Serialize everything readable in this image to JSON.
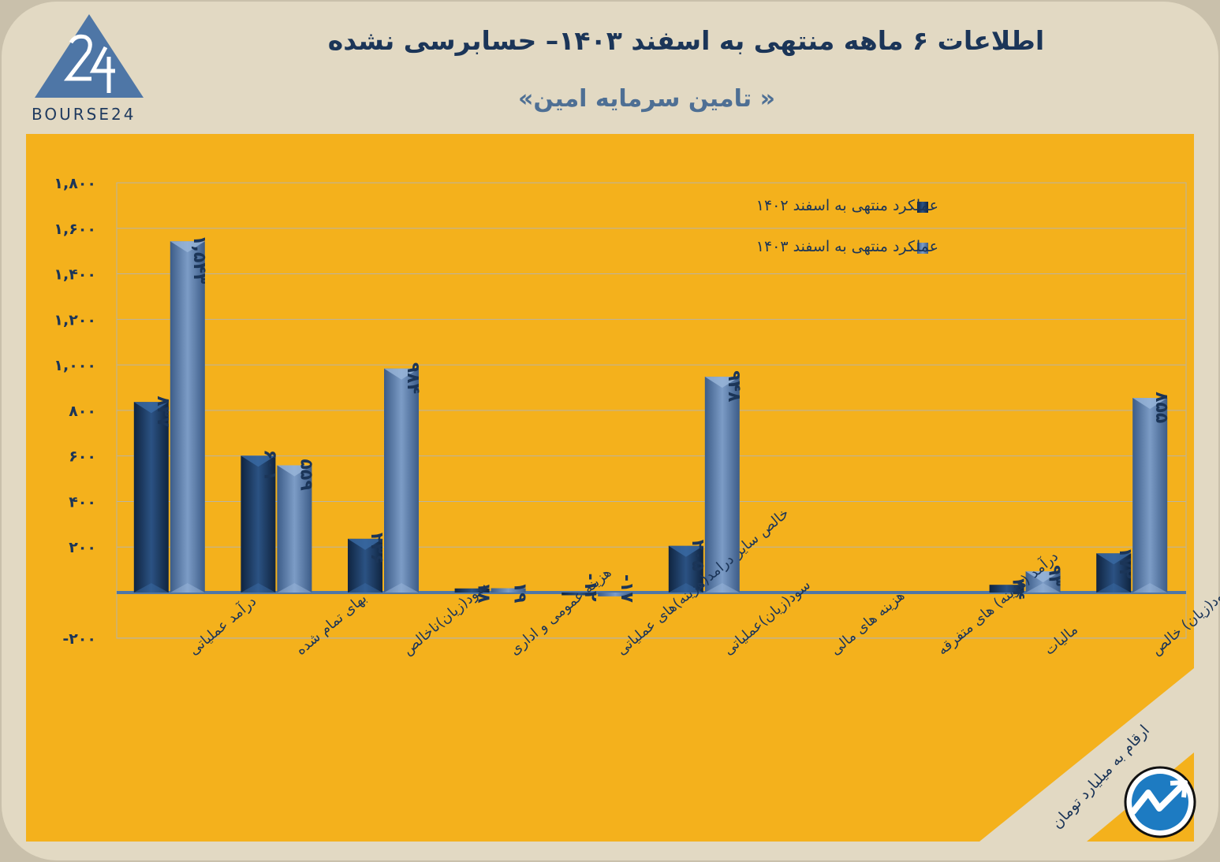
{
  "header": {
    "title": "اطلاعات ۶ ماهه منتهی به اسفند ۱۴۰۳– حسابرسی نشده",
    "subtitle": "« تامین سرمایه امین»",
    "logo_text": "BOURSE24"
  },
  "footer": {
    "units_note": "ارقام به میلیارد تومان"
  },
  "colors": {
    "background": "#c9c0ab",
    "panel": "#e2d9c3",
    "plot_area": "#f4b11c",
    "series_1402": "#1f3d66",
    "series_1403": "#5a7aa6",
    "text": "#1b3558"
  },
  "icons": [
    "logo-24-triangle-icon",
    "trend-arrow-icon"
  ],
  "chart_data": {
    "type": "bar",
    "categories": [
      "درآمد عملیاتی",
      "بهای تمام شده",
      "سود(زیان)ناخالص",
      "هزینه عمومی و اداری",
      "خالص سایر درامد(هزینه)های عملیاتی",
      "سود(زیان)عملیاتی",
      "هزینه های مالی",
      "درآمد (هزینه) های متفرقه",
      "مالیات",
      "سود(زیان) خالص"
    ],
    "series": [
      {
        "name": "عملکرد منتهی به اسفند ۱۴۰۲",
        "values": [
          837,
          601,
          236,
          18,
          -12,
          205,
          0,
          0,
          34,
          172
        ],
        "labels": [
          "۸۳۷",
          "۶۰۱",
          "۲۳۶",
          "۱۸",
          "-۱۲",
          "۲۰۵",
          "",
          "",
          "۳۴",
          "۱۷۲"
        ]
      },
      {
        "name": "عملکرد منتهی به اسفند ۱۴۰۳",
        "values": [
          1543,
          559,
          984,
          19,
          -17,
          948,
          0,
          0,
          93,
          855
        ],
        "labels": [
          "۱,۵۴۳",
          "۵۵۹",
          "۹۸۴",
          "۱۹",
          "-۱۷",
          "۹۴۸",
          "",
          "",
          "۹۳",
          "۸۵۵"
        ]
      }
    ],
    "y_ticks": [
      -200,
      200,
      400,
      600,
      800,
      1000,
      1200,
      1400,
      1600,
      1800
    ],
    "y_tick_labels": [
      "-۲۰۰",
      "۲۰۰",
      "۴۰۰",
      "۶۰۰",
      "۸۰۰",
      "۱,۰۰۰",
      "۱,۲۰۰",
      "۱,۴۰۰",
      "۱,۶۰۰",
      "۱,۸۰۰"
    ],
    "ylim": [
      -200,
      1800
    ],
    "grid": true,
    "legend_position": "top-right"
  }
}
